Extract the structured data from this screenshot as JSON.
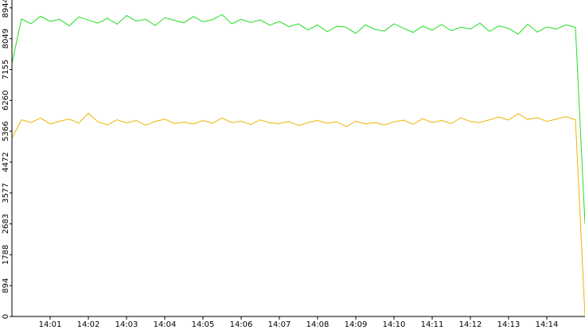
{
  "chart_data": {
    "type": "line",
    "x": [
      0,
      0.25,
      0.5,
      0.75,
      1,
      1.25,
      1.5,
      1.75,
      2,
      2.25,
      2.5,
      2.75,
      3,
      3.25,
      3.5,
      3.75,
      4,
      4.25,
      4.5,
      4.75,
      5,
      5.25,
      5.5,
      5.75,
      6,
      6.25,
      6.5,
      6.75,
      7,
      7.25,
      7.5,
      7.75,
      8,
      8.25,
      8.5,
      8.75,
      9,
      9.25,
      9.5,
      9.75,
      10,
      10.25,
      10.5,
      10.75,
      11,
      11.25,
      11.5,
      11.75,
      12,
      12.25,
      12.5,
      12.75,
      13,
      13.25,
      13.5,
      13.75,
      14,
      14.25,
      14.5,
      14.75,
      15
    ],
    "xlim": [
      0,
      15
    ],
    "xticks": [
      {
        "value": 1,
        "label": "14:01"
      },
      {
        "value": 2,
        "label": "14:02"
      },
      {
        "value": 3,
        "label": "14:03"
      },
      {
        "value": 4,
        "label": "14:04"
      },
      {
        "value": 5,
        "label": "14:05"
      },
      {
        "value": 6,
        "label": "14:06"
      },
      {
        "value": 7,
        "label": "14:07"
      },
      {
        "value": 8,
        "label": "14:08"
      },
      {
        "value": 9,
        "label": "14:09"
      },
      {
        "value": 10,
        "label": "14:10"
      },
      {
        "value": 11,
        "label": "14:11"
      },
      {
        "value": 12,
        "label": "14:12"
      },
      {
        "value": 13,
        "label": "14:13"
      },
      {
        "value": 14,
        "label": "14:14"
      }
    ],
    "ylim": [
      0,
      9170
    ],
    "yticks": [
      0,
      894,
      1788,
      2683,
      3577,
      4472,
      5366,
      6260,
      7155,
      8049,
      8944
    ],
    "series": [
      {
        "color": "#22dd22",
        "values": [
          7330,
          8620,
          8480,
          8700,
          8550,
          8610,
          8420,
          8680,
          8590,
          8500,
          8640,
          8470,
          8720,
          8560,
          8610,
          8430,
          8660,
          8580,
          8510,
          8690,
          8540,
          8600,
          8750,
          8480,
          8610,
          8520,
          8590,
          8440,
          8550,
          8400,
          8480,
          8300,
          8450,
          8250,
          8410,
          8380,
          8200,
          8450,
          8320,
          8270,
          8480,
          8350,
          8230,
          8410,
          8300,
          8460,
          8280,
          8380,
          8330,
          8500,
          8260,
          8420,
          8350,
          8180,
          8470,
          8240,
          8390,
          8330,
          8450,
          8380,
          2680
        ]
      },
      {
        "color": "#f0b400",
        "values": [
          5170,
          5700,
          5620,
          5750,
          5580,
          5660,
          5720,
          5600,
          5890,
          5640,
          5550,
          5700,
          5610,
          5680,
          5540,
          5650,
          5720,
          5590,
          5630,
          5580,
          5680,
          5600,
          5750,
          5620,
          5660,
          5560,
          5700,
          5610,
          5590,
          5650,
          5530,
          5620,
          5680,
          5600,
          5640,
          5500,
          5660,
          5580,
          5620,
          5550,
          5640,
          5690,
          5570,
          5730,
          5620,
          5680,
          5590,
          5760,
          5650,
          5620,
          5700,
          5780,
          5690,
          5880,
          5710,
          5760,
          5650,
          5720,
          5790,
          5700,
          0
        ]
      }
    ]
  }
}
